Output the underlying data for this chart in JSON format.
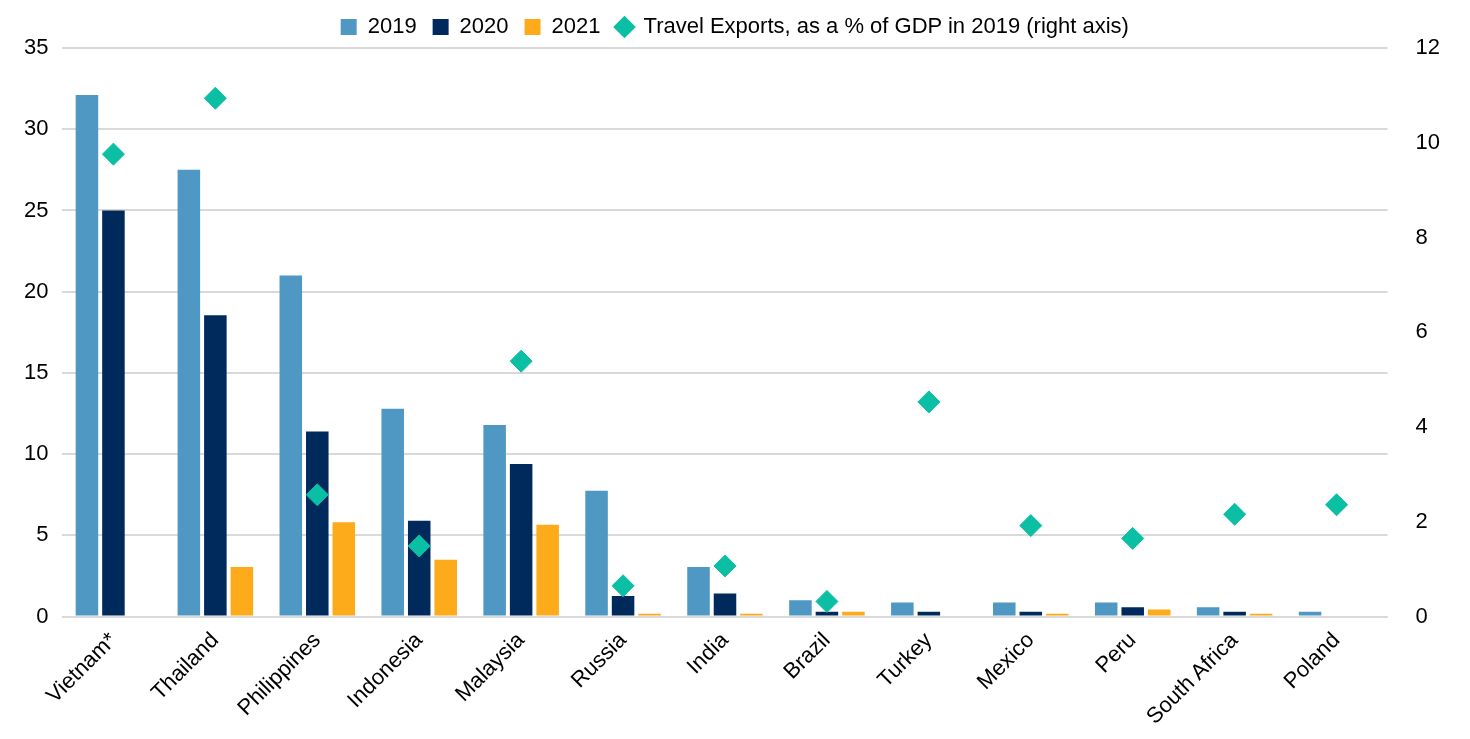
{
  "chart_data": {
    "type": "bar",
    "categories": [
      "Vietnam*",
      "Thailand",
      "Philippines",
      "Indonesia",
      "Malaysia",
      "Russia",
      "India",
      "Brazil",
      "Turkey",
      "Mexico",
      "Peru",
      "South Africa",
      "Poland"
    ],
    "series": [
      {
        "name": "2019",
        "color": "#4f98c3",
        "values": [
          32.1,
          27.5,
          21.0,
          12.8,
          11.8,
          7.75,
          3.05,
          1.0,
          0.87,
          0.87,
          0.87,
          0.58,
          0.3
        ]
      },
      {
        "name": "2020",
        "color": "#002a5c",
        "values": [
          25.0,
          18.55,
          11.4,
          5.9,
          9.4,
          1.27,
          1.42,
          0.3,
          0.3,
          0.3,
          0.58,
          0.3,
          null
        ]
      },
      {
        "name": "2021",
        "color": "#fdaa1b",
        "values": [
          null,
          3.06,
          5.8,
          3.5,
          5.65,
          0.18,
          0.18,
          0.3,
          null,
          0.18,
          0.44,
          0.18,
          null
        ]
      },
      {
        "name": "Travel Exports, as a % of GDP in 2019 (right axis)",
        "type": "scatter",
        "axis": "y2",
        "color": "#0bbfa5",
        "values": [
          9.76,
          10.94,
          2.57,
          1.49,
          5.39,
          0.65,
          1.07,
          0.32,
          4.53,
          1.92,
          1.65,
          2.16,
          2.36
        ]
      }
    ],
    "ylim": [
      0,
      35
    ],
    "yticks": [
      0,
      5,
      10,
      15,
      20,
      25,
      30,
      35
    ],
    "y2lim": [
      0,
      12
    ],
    "y2ticks": [
      0,
      2,
      4,
      6,
      8,
      10,
      12
    ],
    "grid": "y",
    "legend": "top",
    "marker": "diamond"
  }
}
